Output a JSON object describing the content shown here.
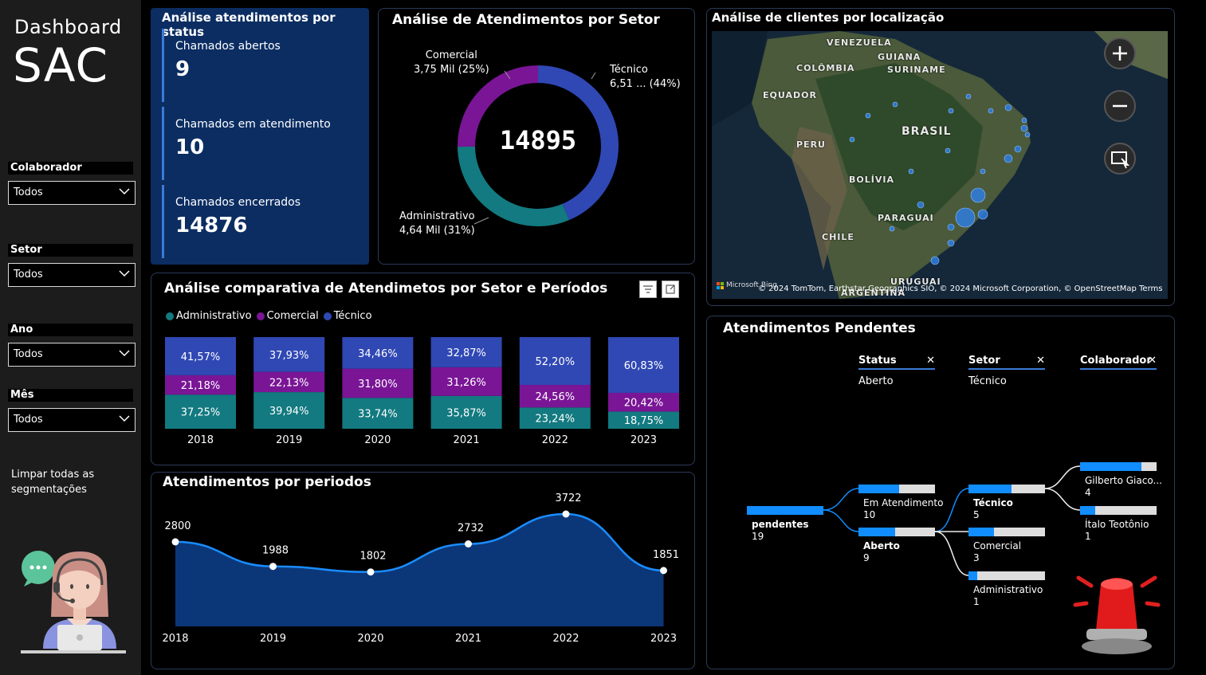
{
  "sidebar": {
    "title": "Dashboard",
    "subtitle": "SAC",
    "filters": [
      {
        "label": "Colaborador",
        "value": "Todos"
      },
      {
        "label": "Setor",
        "value": "Todos"
      },
      {
        "label": "Ano",
        "value": "Todos"
      },
      {
        "label": "Mês",
        "value": "Todos"
      }
    ],
    "clear_label": "Limpar todas as segmentações"
  },
  "status": {
    "title": "Análise atendimentos por status",
    "kpis": [
      {
        "label": "Chamados abertos",
        "value": "9"
      },
      {
        "label": "Chamados em atendimento",
        "value": "10"
      },
      {
        "label": "Chamados encerrados",
        "value": "14876"
      }
    ]
  },
  "donut": {
    "title": "Análise de Atendimentos por Setor",
    "total": "14895",
    "labels": {
      "comercial_name": "Comercial",
      "comercial_val": "3,75 Mil (25%)",
      "tecnico_name": "Técnico",
      "tecnico_val": "6,51 ... (44%)",
      "admin_name": "Administrativo",
      "admin_val": "4,64 Mil (31%)"
    }
  },
  "map": {
    "title": "Análise de clientes por localização",
    "attribution": "© 2024 TomTom, Earthstar Geographics SIO, © 2024 Microsoft Corporation, © OpenStreetMap  Terms",
    "bing": "Microsoft Bing",
    "countries": {
      "venezuela": "VENEZUELA",
      "guiana": "GUIANA",
      "suriname": "SURINAME",
      "colombia": "COLÔMBIA",
      "equador": "EQUADOR",
      "brasil": "BRASIL",
      "peru": "PERU",
      "bolivia": "BOLÍVIA",
      "paraguai": "PARAGUAI",
      "chile": "CHILE",
      "uruguai": "URUGUAI",
      "argentina": "ARGENTINA"
    }
  },
  "bars": {
    "title": "Análise comparativa de Atendimetos por Setor e Períodos",
    "legend": [
      "Administrativo",
      "Comercial",
      "Técnico"
    ]
  },
  "line": {
    "title": "Atendimentos por periodos"
  },
  "tree": {
    "title": "Atendimentos Pendentes",
    "headers": [
      {
        "label": "Status",
        "sub": "Aberto"
      },
      {
        "label": "Setor",
        "sub": "Técnico"
      },
      {
        "label": "Colaborador",
        "sub": ""
      }
    ],
    "root": {
      "label": "pendentes",
      "value": "19"
    },
    "level1": [
      {
        "label": "Em Atendimento",
        "value": "10"
      },
      {
        "label": "Aberto",
        "value": "9"
      }
    ],
    "level2": [
      {
        "label": "Técnico",
        "value": "5"
      },
      {
        "label": "Comercial",
        "value": "3"
      },
      {
        "label": "Administrativo",
        "value": "1"
      }
    ],
    "level3": [
      {
        "label": "Gilberto Giaco...",
        "value": "4"
      },
      {
        "label": "Ítalo Teotônio",
        "value": "1"
      }
    ]
  },
  "colors": {
    "admin": "#127a80",
    "comercial": "#7a1596",
    "tecnico": "#3048b4",
    "status_bg": "#0b2d62",
    "accent": "#118dff"
  },
  "chart_data": [
    {
      "type": "pie",
      "title": "Análise de Atendimentos por Setor",
      "categories": [
        "Técnico",
        "Administrativo",
        "Comercial"
      ],
      "values": [
        6510,
        4640,
        3750
      ],
      "percents": [
        44,
        31,
        25
      ],
      "total": 14895
    },
    {
      "type": "bar",
      "title": "Análise comparativa de Atendimetos por Setor e Períodos",
      "stacked": true,
      "percent": true,
      "categories": [
        "2018",
        "2019",
        "2020",
        "2021",
        "2022",
        "2023"
      ],
      "series": [
        {
          "name": "Administrativo",
          "values": [
            37.25,
            39.94,
            33.74,
            35.87,
            23.24,
            18.75
          ],
          "labels": [
            "37,25%",
            "39,94%",
            "33,74%",
            "35,87%",
            "23,24%",
            "18,75%"
          ]
        },
        {
          "name": "Comercial",
          "values": [
            21.18,
            22.13,
            31.8,
            31.26,
            24.56,
            20.42
          ],
          "labels": [
            "21,18%",
            "22,13%",
            "31,80%",
            "31,26%",
            "24,56%",
            "20,42%"
          ]
        },
        {
          "name": "Técnico",
          "values": [
            41.57,
            37.93,
            34.46,
            32.87,
            52.2,
            60.83
          ],
          "labels": [
            "41,57%",
            "37,93%",
            "34,46%",
            "32,87%",
            "52,20%",
            "60,83%"
          ]
        }
      ]
    },
    {
      "type": "area",
      "title": "Atendimentos por periodos",
      "x": [
        "2018",
        "2019",
        "2020",
        "2021",
        "2022",
        "2023"
      ],
      "values": [
        2800,
        1988,
        1802,
        2732,
        3722,
        1851
      ]
    }
  ]
}
